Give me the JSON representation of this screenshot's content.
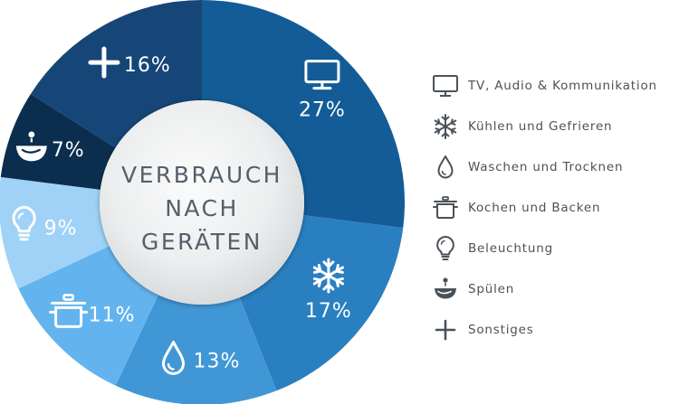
{
  "center_label": [
    "VERBRAUCH",
    "NACH",
    "GERÄTEN"
  ],
  "chart_data": {
    "type": "pie",
    "categories": [
      "TV, Audio & Kommunikation",
      "Kühlen und Gefrieren",
      "Waschen und Trocknen",
      "Kochen und Backen",
      "Beleuchtung",
      "Spülen",
      "Sonstiges"
    ],
    "values": [
      27,
      17,
      13,
      11,
      9,
      7,
      16
    ],
    "labels": [
      "27%",
      "17%",
      "13%",
      "11%",
      "9%",
      "7%",
      "16%"
    ],
    "colors": [
      "#135c97",
      "#2a7fc0",
      "#4197d6",
      "#63b4ee",
      "#9fd2f6",
      "#0b2e4f",
      "#154677"
    ],
    "icons": [
      "tv-icon",
      "snowflake-icon",
      "drop-icon",
      "pot-icon",
      "bulb-icon",
      "dish-icon",
      "plus-icon"
    ],
    "legend_position": "right"
  },
  "legend": [
    {
      "label": "TV, Audio & Kommunikation",
      "icon": "tv-icon"
    },
    {
      "label": "Kühlen und Gefrieren",
      "icon": "snowflake-icon"
    },
    {
      "label": "Waschen und Trocknen",
      "icon": "drop-icon"
    },
    {
      "label": "Kochen und Backen",
      "icon": "pot-icon"
    },
    {
      "label": "Beleuchtung",
      "icon": "bulb-icon"
    },
    {
      "label": "Spülen",
      "icon": "dish-icon"
    },
    {
      "label": "Sonstiges",
      "icon": "plus-icon"
    }
  ]
}
